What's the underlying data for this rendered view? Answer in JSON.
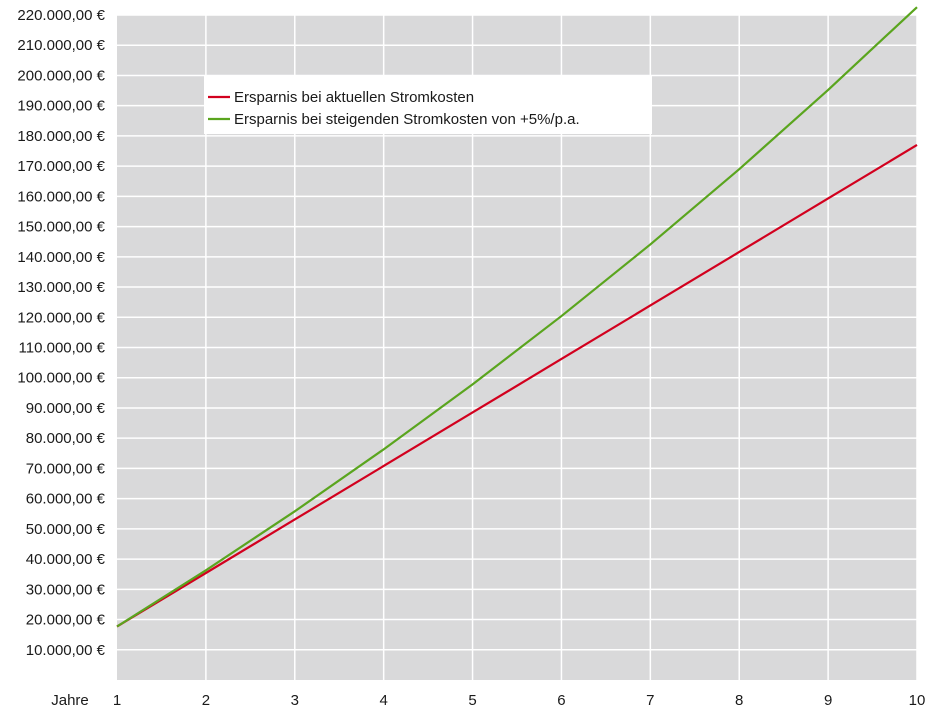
{
  "chart_data": {
    "type": "line",
    "title": "",
    "xlabel": "Jahre",
    "ylabel": "",
    "x": [
      1,
      2,
      3,
      4,
      5,
      6,
      7,
      8,
      9,
      10
    ],
    "xlim": [
      1,
      10
    ],
    "ylim": [
      0,
      220000
    ],
    "x_tick_labels": [
      "1",
      "2",
      "3",
      "4",
      "5",
      "6",
      "7",
      "8",
      "9",
      "10"
    ],
    "y_ticks": [
      10000,
      20000,
      30000,
      40000,
      50000,
      60000,
      70000,
      80000,
      90000,
      100000,
      110000,
      120000,
      130000,
      140000,
      150000,
      160000,
      170000,
      180000,
      190000,
      200000,
      210000,
      220000
    ],
    "y_tick_labels": [
      "10.000,00 €",
      "20.000,00 €",
      "30.000,00 €",
      "40.000,00 €",
      "50.000,00 €",
      "60.000,00 €",
      "70.000,00 €",
      "80.000,00 €",
      "90.000,00 €",
      "100.000,00 €",
      "110.000,00 €",
      "120.000,00 €",
      "130.000,00 €",
      "140.000,00 €",
      "150.000,00 €",
      "160.000,00 €",
      "170.000,00 €",
      "180.000,00 €",
      "190.000,00 €",
      "200.000,00 €",
      "210.000,00 €",
      "220.000,00 €"
    ],
    "grid": true,
    "legend_position": "top-left",
    "plot_background": "#d9d9da",
    "grid_color": "#ffffff",
    "series": [
      {
        "name": "Ersparnis bei aktuellen Stromkosten",
        "color": "#d2001e",
        "values": [
          17700,
          35400,
          53100,
          70800,
          88500,
          106200,
          123900,
          141600,
          159300,
          177000
        ]
      },
      {
        "name": "Ersparnis bei steigenden Stromkosten von +5%/p.a.",
        "color": "#5aa51e",
        "values": [
          17700,
          36300,
          55800,
          76300,
          97800,
          120400,
          144100,
          169000,
          195200,
          222600
        ]
      }
    ]
  }
}
